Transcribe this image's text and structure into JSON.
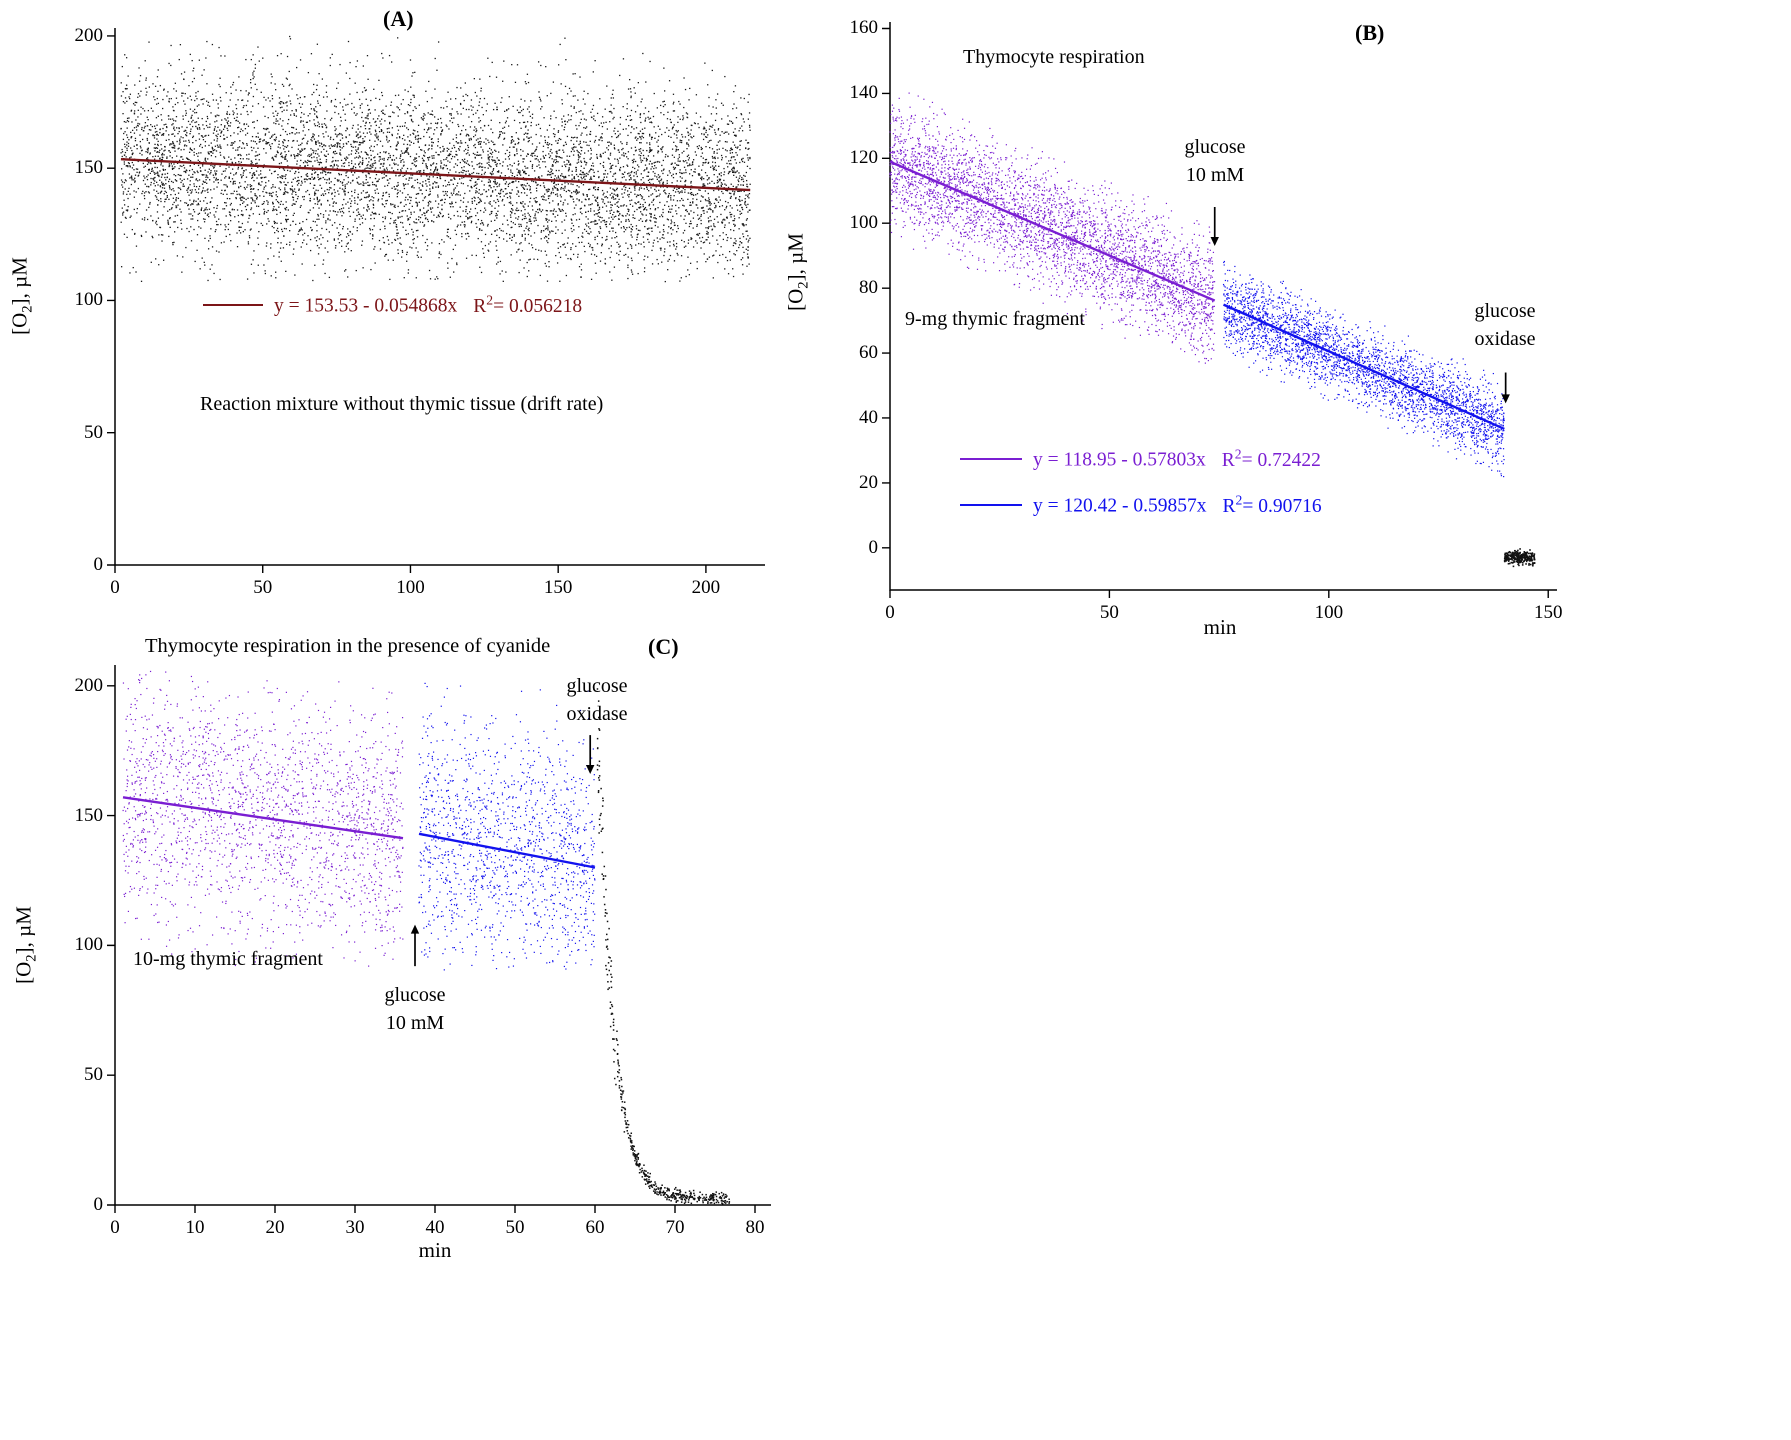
{
  "page": {
    "background": "#ffffff"
  },
  "chart_data": [
    {
      "panel": "A",
      "type": "scatter",
      "panel_label": "(A)",
      "ylabel_pre": "[O",
      "ylabel_sub": "2",
      "ylabel_post": "], µM",
      "xlabel": "",
      "xlim": [
        0,
        220
      ],
      "ylim": [
        0,
        203
      ],
      "xticks": [
        0,
        50,
        100,
        150,
        200
      ],
      "yticks": [
        0,
        50,
        100,
        150,
        200
      ],
      "note": "Reaction mixture without thymic tissue (drift rate)",
      "r2_prefix": "R",
      "r2_sup": "2",
      "r2_equals": "= ",
      "series": [
        {
          "name": "reaction-mixture-drift-points",
          "color": "#1a1a1a",
          "x_range": [
            2,
            215
          ],
          "trend": {
            "intercept": 153.53,
            "slope": -0.054868
          },
          "noise_sd": 17,
          "clip": [
            107,
            200
          ],
          "n": 6500,
          "dot": 1.3
        }
      ],
      "fit_lines": [
        {
          "color": "#7c1518",
          "intercept": 153.53,
          "slope": -0.054868,
          "x_range": [
            2,
            215
          ],
          "equation": "y = 153.53 - 0.054868x",
          "r2": "0.056218"
        }
      ]
    },
    {
      "panel": "B",
      "type": "scatter",
      "panel_label": "(B)",
      "ylabel_pre": "[O",
      "ylabel_sub": "2",
      "ylabel_post": "], µM",
      "xlabel": "min",
      "xlim": [
        0,
        152
      ],
      "ylim": [
        -13,
        162
      ],
      "xticks": [
        0,
        50,
        100,
        150
      ],
      "yticks": [
        0,
        20,
        40,
        60,
        80,
        100,
        120,
        140,
        160
      ],
      "texts": {
        "title": "Thymocyte respiration",
        "fragment": "9-mg thymic fragment"
      },
      "r2_prefix": "R",
      "r2_sup": "2",
      "r2_equals": "= ",
      "annotations": [
        {
          "lines": [
            "glucose",
            "10 mM"
          ],
          "arrow": {
            "x": 74,
            "y_from": 105,
            "y_to": 93
          }
        },
        {
          "lines": [
            "glucose",
            "oxidase"
          ],
          "arrow": {
            "x": 140.3,
            "y_from": 54,
            "y_to": 44.5
          }
        }
      ],
      "series": [
        {
          "name": "respiration-before-glucose",
          "color": "#7a1ed2",
          "x_range": [
            0,
            74
          ],
          "trend": {
            "intercept": 118.95,
            "slope": -0.57803
          },
          "noise_sd": 9,
          "clip_band": 24,
          "n": 3800,
          "dot": 1.2
        },
        {
          "name": "respiration-after-glucose",
          "color": "#1212ee",
          "x_range": [
            76,
            140
          ],
          "trend": {
            "intercept": 120.42,
            "slope": -0.59857
          },
          "noise_sd": 6,
          "clip_band": 16,
          "n": 3200,
          "dot": 1.2
        },
        {
          "name": "after-glucose-oxidase-baseline",
          "color": "#111111",
          "x_range": [
            140,
            147
          ],
          "trend": {
            "intercept": -3,
            "slope": 0
          },
          "noise_sd": 1.1,
          "clip_band": 2.8,
          "n": 260,
          "dot": 1.6
        }
      ],
      "fit_lines": [
        {
          "color": "#7a1ed2",
          "intercept": 118.95,
          "slope": -0.57803,
          "x_range": [
            0,
            74
          ],
          "equation": "y = 118.95 - 0.57803x",
          "r2": "0.72422"
        },
        {
          "color": "#1212ee",
          "intercept": 120.42,
          "slope": -0.59857,
          "x_range": [
            76,
            140
          ],
          "equation": "y = 120.42 - 0.59857x",
          "r2": "0.90716"
        }
      ]
    },
    {
      "panel": "C",
      "type": "scatter",
      "panel_label": "(C)",
      "title": "Thymocyte respiration in the presence of cyanide",
      "ylabel_pre": "[O",
      "ylabel_sub": "2",
      "ylabel_post": "], µM",
      "xlabel": "min",
      "xlim": [
        0,
        82
      ],
      "ylim": [
        0,
        208
      ],
      "xticks": [
        0,
        10,
        20,
        30,
        40,
        50,
        60,
        70,
        80
      ],
      "yticks": [
        0,
        50,
        100,
        150,
        200
      ],
      "texts": {
        "fragment": "10-mg thymic fragment"
      },
      "annotations": [
        {
          "lines": [
            "glucose",
            "10 mM"
          ],
          "arrow": {
            "x": 37.5,
            "y_from": 92,
            "y_to": 108
          }
        },
        {
          "lines": [
            "glucose",
            "oxidase"
          ],
          "arrow": {
            "x": 59.4,
            "y_from": 181,
            "y_to": 166
          }
        }
      ],
      "series": [
        {
          "name": "cyanide-before-glucose",
          "color": "#7a1ed2",
          "x_range": [
            1,
            36
          ],
          "trend": {
            "intercept": 157.5,
            "slope": -0.45
          },
          "noise_sd": 24,
          "clip": [
            92,
            206
          ],
          "n": 2100,
          "dot": 1.2
        },
        {
          "name": "cyanide-after-glucose",
          "color": "#1212ee",
          "x_range": [
            38,
            60
          ],
          "trend": {
            "intercept": 165.4,
            "slope": -0.59
          },
          "noise_sd": 24,
          "clip": [
            90,
            203
          ],
          "n": 1400,
          "dot": 1.2
        },
        {
          "name": "after-glucose-oxidase-decay",
          "color": "#111111",
          "decay": {
            "x_start": 60.3,
            "x_span": 16.5,
            "base": 2,
            "amp": 183,
            "tau": 2.0
          },
          "noise_rel": 0.1,
          "noise_min": 1.5,
          "n": 470,
          "dot": 1.5
        }
      ],
      "fit_lines": [
        {
          "color": "#7a1ed2",
          "intercept": 157.5,
          "slope": -0.45,
          "x_range": [
            1,
            36
          ]
        },
        {
          "color": "#1212ee",
          "intercept": 165.4,
          "slope": -0.59,
          "x_range": [
            38,
            60
          ]
        }
      ]
    }
  ]
}
